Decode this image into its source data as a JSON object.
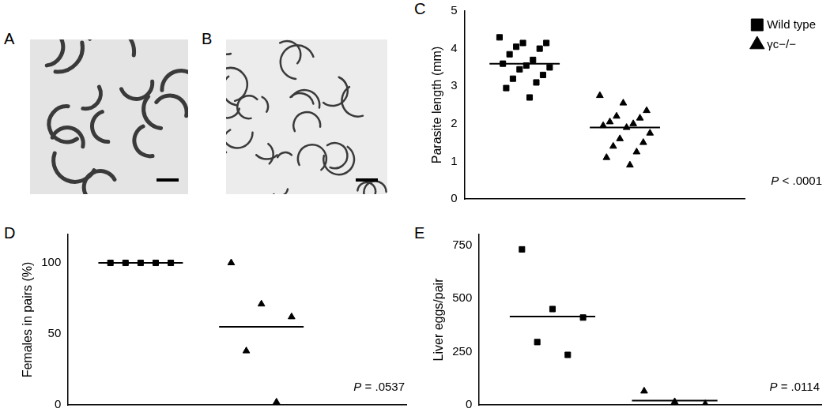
{
  "images": [
    {
      "panel": "A"
    },
    {
      "panel": "B"
    }
  ],
  "chart_data": [
    {
      "panel": "C",
      "type": "scatter",
      "ylabel": "Parasite length (mm)",
      "ylim": [
        0,
        5
      ],
      "yticks": [
        0,
        1,
        2,
        3,
        4,
        5
      ],
      "tick_labels": "y",
      "grid": false,
      "legend": "upper right",
      "annotation": "P < .0001",
      "series": [
        {
          "name": "Wild type",
          "color": "#000000",
          "marker": "square",
          "values": [
            4.3,
            4.15,
            4.15,
            4.05,
            4.0,
            3.85,
            3.7,
            3.6,
            3.55,
            3.5,
            3.45,
            3.3,
            3.2,
            3.1,
            2.95,
            2.7
          ],
          "mean": 3.6
        },
        {
          "name": "γc−/−",
          "color": "#000000",
          "marker": "triangle",
          "values": [
            2.75,
            2.55,
            2.35,
            2.2,
            2.15,
            2.05,
            2.0,
            1.95,
            1.9,
            1.75,
            1.6,
            1.5,
            1.4,
            1.25,
            1.1,
            0.9
          ],
          "mean": 1.9
        }
      ]
    },
    {
      "panel": "D",
      "type": "scatter",
      "ylabel": "Females in pairs (%)",
      "ylim": [
        0,
        120
      ],
      "yticks": [
        0,
        50,
        100
      ],
      "tick_labels": "y",
      "grid": false,
      "annotation": "P = .0537",
      "series": [
        {
          "color": "#000000",
          "marker": "square",
          "values": [
            100,
            100,
            100,
            100,
            100
          ],
          "mean": 100
        },
        {
          "color": "#000000",
          "marker": "triangle",
          "values": [
            100,
            71,
            62,
            38,
            2
          ],
          "mean": 55
        }
      ]
    },
    {
      "panel": "E",
      "type": "scatter",
      "ylabel": "Liver eggs/pair",
      "ylim": [
        0,
        800
      ],
      "yticks": [
        0,
        250,
        500,
        750
      ],
      "tick_labels": "y",
      "grid": false,
      "annotation": "P = .0114",
      "series": [
        {
          "color": "#000000",
          "marker": "square",
          "values": [
            730,
            450,
            410,
            295,
            235
          ],
          "mean": 415
        },
        {
          "color": "#000000",
          "marker": "triangle",
          "values": [
            65,
            15,
            5
          ],
          "mean": 20
        }
      ]
    }
  ]
}
